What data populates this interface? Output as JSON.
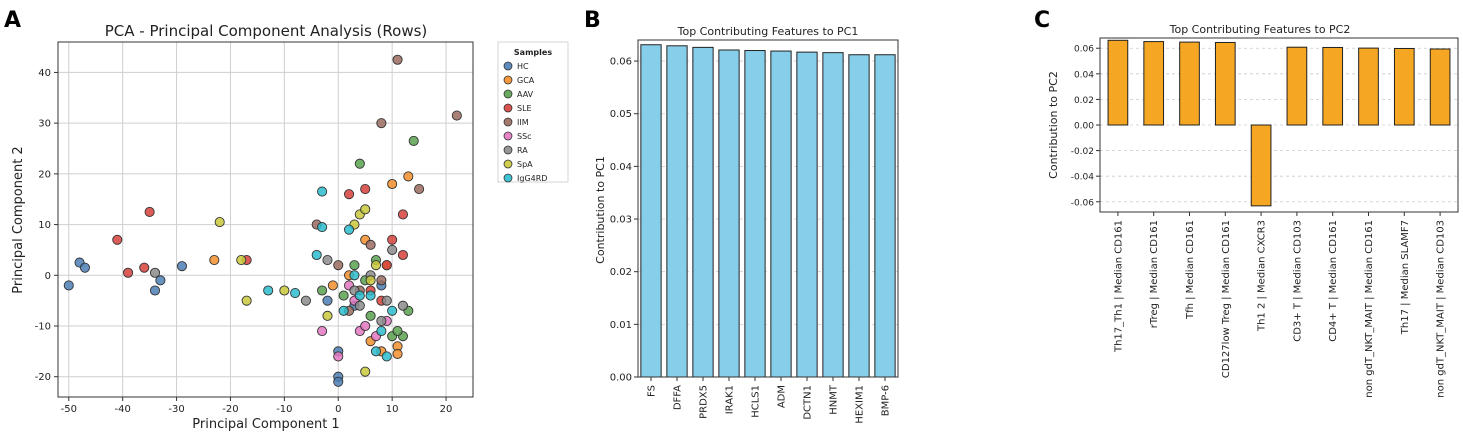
{
  "panels": {
    "a": {
      "letter": "A"
    },
    "b": {
      "letter": "B"
    },
    "c": {
      "letter": "C"
    }
  },
  "chart_data": [
    {
      "type": "scatter",
      "title": "PCA - Principal Component Analysis (Rows)",
      "xlabel": "Principal Component 1",
      "ylabel": "Principal Component 2",
      "xlim": [
        -52,
        25
      ],
      "ylim": [
        -24,
        46
      ],
      "xticks": [
        -50,
        -40,
        -30,
        -20,
        -10,
        0,
        10,
        20
      ],
      "yticks": [
        -20,
        -10,
        0,
        10,
        20,
        30,
        40
      ],
      "grid": true,
      "legend": {
        "title": "Samples",
        "position": "outside-right"
      },
      "series": [
        {
          "name": "HC",
          "color": "#4c7fb5",
          "points": [
            [
              -50,
              -2
            ],
            [
              -48,
              2.5
            ],
            [
              -47,
              1.5
            ],
            [
              -34,
              -3
            ],
            [
              -33,
              -1
            ],
            [
              -29,
              1.8
            ],
            [
              0,
              -20
            ],
            [
              0,
              -21
            ],
            [
              0,
              -15
            ],
            [
              -2,
              -5
            ],
            [
              3,
              -6
            ],
            [
              8,
              -2
            ]
          ]
        },
        {
          "name": "GCA",
          "color": "#f28e2b",
          "points": [
            [
              -23,
              3
            ],
            [
              10,
              18
            ],
            [
              13,
              19.5
            ],
            [
              11,
              -14
            ],
            [
              11,
              -15.5
            ],
            [
              6,
              -13
            ],
            [
              8,
              -15
            ],
            [
              9,
              2
            ],
            [
              2,
              0
            ],
            [
              -1,
              -2
            ],
            [
              5,
              7
            ]
          ]
        },
        {
          "name": "AAV",
          "color": "#59a14f",
          "points": [
            [
              4,
              22
            ],
            [
              14,
              26.5
            ],
            [
              13,
              -7
            ],
            [
              12,
              -12
            ],
            [
              10,
              -12
            ],
            [
              3,
              2
            ],
            [
              5,
              -1
            ],
            [
              7,
              3
            ],
            [
              -3,
              -3
            ],
            [
              1,
              -4
            ],
            [
              6,
              -8
            ],
            [
              11,
              -11
            ]
          ]
        },
        {
          "name": "SLE",
          "color": "#d6403a",
          "points": [
            [
              -41,
              7
            ],
            [
              -39,
              0.5
            ],
            [
              -36,
              1.5
            ],
            [
              -35,
              12.5
            ],
            [
              -17,
              3
            ],
            [
              2,
              16
            ],
            [
              5,
              17
            ],
            [
              12,
              12
            ],
            [
              10,
              7
            ],
            [
              12,
              4
            ],
            [
              6,
              -3
            ],
            [
              8,
              -5
            ],
            [
              9,
              2
            ]
          ]
        },
        {
          "name": "IIM",
          "color": "#9a6b5e",
          "points": [
            [
              11,
              42.5
            ],
            [
              22,
              31.5
            ],
            [
              8,
              30
            ],
            [
              15,
              17
            ],
            [
              -4,
              10
            ],
            [
              0,
              2
            ],
            [
              4,
              -3
            ],
            [
              8,
              -1
            ],
            [
              2,
              -7
            ],
            [
              6,
              6
            ]
          ]
        },
        {
          "name": "SSc",
          "color": "#e377c2",
          "points": [
            [
              -3,
              -11
            ],
            [
              0,
              -16
            ],
            [
              4,
              -11
            ],
            [
              7,
              -12
            ],
            [
              9,
              -9
            ],
            [
              2,
              -2
            ],
            [
              5,
              -10
            ],
            [
              3,
              -5
            ]
          ]
        },
        {
          "name": "RA",
          "color": "#8c8c8c",
          "points": [
            [
              -34,
              0.5
            ],
            [
              -6,
              -5
            ],
            [
              -2,
              3
            ],
            [
              3,
              -3
            ],
            [
              8,
              -9
            ],
            [
              10,
              5
            ],
            [
              12,
              -6
            ],
            [
              6,
              0
            ],
            [
              4,
              -6
            ],
            [
              9,
              -5
            ]
          ]
        },
        {
          "name": "SpA",
          "color": "#c9c93c",
          "points": [
            [
              -22,
              10.5
            ],
            [
              -18,
              3
            ],
            [
              -17,
              -5
            ],
            [
              -10,
              -3
            ],
            [
              4,
              12
            ],
            [
              5,
              13
            ],
            [
              3,
              10
            ],
            [
              6,
              -1
            ],
            [
              5,
              -19
            ],
            [
              7,
              2
            ],
            [
              -2,
              -8
            ]
          ]
        },
        {
          "name": "IgG4RD",
          "color": "#2bbccd",
          "points": [
            [
              -3,
              16.5
            ],
            [
              -3,
              9.5
            ],
            [
              -4,
              4
            ],
            [
              -8,
              -3.5
            ],
            [
              -13,
              -3
            ],
            [
              3,
              0
            ],
            [
              7,
              -15
            ],
            [
              9,
              -16
            ],
            [
              10,
              -7
            ],
            [
              6,
              -4
            ],
            [
              1,
              -7
            ],
            [
              4,
              -4
            ],
            [
              8,
              -11
            ],
            [
              2,
              9
            ]
          ]
        }
      ]
    },
    {
      "type": "bar",
      "title": "Top Contributing Features to PC1",
      "xlabel": "",
      "ylabel": "Contribution to PC1",
      "ylim": [
        0,
        0.064
      ],
      "yticks": [
        0.0,
        0.01,
        0.02,
        0.03,
        0.04,
        0.05,
        0.06
      ],
      "grid": true,
      "bar_color": "#87ceeb",
      "categories": [
        "FS",
        "DFFA",
        "PRDX5",
        "IRAK1",
        "HCLS1",
        "ADM",
        "DCTN1",
        "HNMT",
        "HEXIM1",
        "BMP-6"
      ],
      "values": [
        0.0631,
        0.0629,
        0.0626,
        0.0621,
        0.062,
        0.0619,
        0.0617,
        0.0616,
        0.0612,
        0.0612
      ]
    },
    {
      "type": "bar",
      "title": "Top Contributing Features to PC2",
      "xlabel": "",
      "ylabel": "Contribution to PC2",
      "ylim": [
        -0.068,
        0.068
      ],
      "yticks": [
        -0.06,
        -0.04,
        -0.02,
        0.0,
        0.02,
        0.04,
        0.06
      ],
      "grid": true,
      "bar_color": "#f5a623",
      "categories": [
        "Th17_Th1 | Median CD161",
        "rTreg | Median CD161",
        "Tfh | Median CD161",
        "CD127low Treg | Median CD161",
        "Th1 2 | Median CXCR3",
        "CD3+ T | Median CD103",
        "CD4+ T | Median CD161",
        "non gdT_NKT_MAIT | Median CD161",
        "Th17 | Median SLAMF7",
        "non gdT_NKT_MAIT | Median CD103"
      ],
      "values": [
        0.0662,
        0.0652,
        0.0648,
        0.0645,
        -0.0632,
        0.0608,
        0.0606,
        0.0601,
        0.0598,
        0.0594
      ]
    }
  ]
}
